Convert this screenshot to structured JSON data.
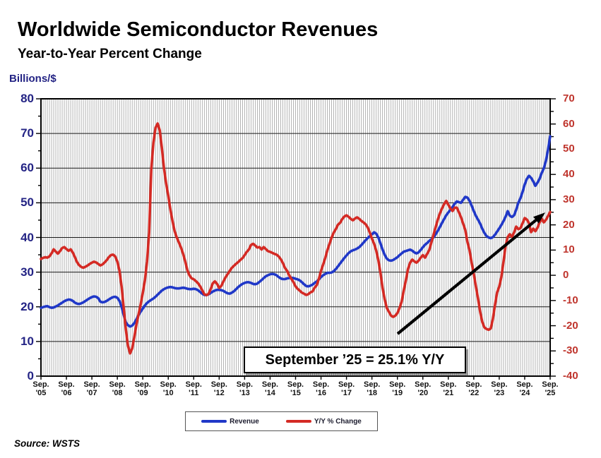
{
  "header": {
    "title": "Worldwide Semiconductor Revenues",
    "subtitle": "Year-to-Year Percent Change"
  },
  "left_axis": {
    "label": "Billions/$",
    "ticks": [
      80,
      70,
      60,
      50,
      40,
      30,
      20,
      10,
      0
    ],
    "color": "#232384"
  },
  "right_axis": {
    "ticks": [
      70,
      60,
      50,
      40,
      30,
      20,
      10,
      0,
      -10,
      -20,
      -30,
      -40
    ],
    "color": "#bf342c"
  },
  "x_axis": {
    "month_label": "Sep.",
    "years": [
      "'05",
      "'06",
      "'07",
      "'08",
      "'09",
      "'10",
      "'11",
      "'12",
      "'13",
      "'14",
      "'15",
      "'16",
      "'17",
      "'18",
      "'19",
      "'20",
      "'21",
      "'22",
      "'23",
      "'24",
      "'25"
    ]
  },
  "annotation": {
    "text": "September ’25 = 25.1% Y/Y"
  },
  "legend": {
    "items": [
      {
        "label": "Revenue",
        "color": "#2038c8"
      },
      {
        "label": "Y/Y % Change",
        "color": "#d42a24"
      }
    ]
  },
  "source": {
    "text": "Source: WSTS"
  },
  "chart_data": {
    "type": "line",
    "x_start": "Sep 2005",
    "x_end": "Sep 2025",
    "x_step": "month",
    "x_tick_labels": [
      "Sep. '05",
      "Sep. '06",
      "Sep. '07",
      "Sep. '08",
      "Sep. '09",
      "Sep. '10",
      "Sep. '11",
      "Sep. '12",
      "Sep. '13",
      "Sep. '14",
      "Sep. '15",
      "Sep. '16",
      "Sep. '17",
      "Sep. '18",
      "Sep. '19",
      "Sep. '20",
      "Sep. '21",
      "Sep. '22",
      "Sep. '23",
      "Sep. '24",
      "Sep. '25"
    ],
    "left_ylim": [
      0,
      80
    ],
    "right_ylim": [
      -40,
      70
    ],
    "grid": {
      "vertical": "monthly",
      "horizontal_step_left_axis": 10
    },
    "legend_position": "bottom",
    "series": [
      {
        "name": "Revenue",
        "axis": "left",
        "units": "billions USD per month",
        "color": "#2038c8",
        "values": [
          19.7,
          19.9,
          20.1,
          20.2,
          19.9,
          19.7,
          19.8,
          20.1,
          20.4,
          20.8,
          21.2,
          21.6,
          21.9,
          22.1,
          22.0,
          21.7,
          21.2,
          20.9,
          20.8,
          21.0,
          21.3,
          21.7,
          22.1,
          22.5,
          22.8,
          23.0,
          22.9,
          22.5,
          21.5,
          21.3,
          21.4,
          21.7,
          22.1,
          22.5,
          22.8,
          22.9,
          22.6,
          21.7,
          20.0,
          17.6,
          15.5,
          14.7,
          14.3,
          14.6,
          15.3,
          16.4,
          17.6,
          18.6,
          19.5,
          20.4,
          21.1,
          21.6,
          22.0,
          22.4,
          22.9,
          23.5,
          24.1,
          24.7,
          25.1,
          25.4,
          25.6,
          25.7,
          25.6,
          25.4,
          25.3,
          25.3,
          25.4,
          25.5,
          25.4,
          25.2,
          25.1,
          25.1,
          25.2,
          25.1,
          24.8,
          24.3,
          23.8,
          23.4,
          23.4,
          23.6,
          24.0,
          24.4,
          24.7,
          24.9,
          24.9,
          24.8,
          24.6,
          24.2,
          23.9,
          23.8,
          24.1,
          24.5,
          25.1,
          25.7,
          26.2,
          26.6,
          26.9,
          27.1,
          27.1,
          26.9,
          26.6,
          26.5,
          26.7,
          27.2,
          27.7,
          28.3,
          28.8,
          29.1,
          29.4,
          29.5,
          29.4,
          29.1,
          28.6,
          28.2,
          28.0,
          28.0,
          28.2,
          28.3,
          28.4,
          28.3,
          28.1,
          27.9,
          27.6,
          27.1,
          26.5,
          26.0,
          25.9,
          26.1,
          26.4,
          26.9,
          27.3,
          27.9,
          28.6,
          29.1,
          29.5,
          29.8,
          29.8,
          29.9,
          30.3,
          30.9,
          31.7,
          32.5,
          33.3,
          34.1,
          34.8,
          35.5,
          36.0,
          36.3,
          36.5,
          36.8,
          37.2,
          37.8,
          38.5,
          39.2,
          39.8,
          40.4,
          40.9,
          41.5,
          41.1,
          40.0,
          38.3,
          36.5,
          35.0,
          33.9,
          33.4,
          33.3,
          33.5,
          33.9,
          34.3,
          34.9,
          35.4,
          35.9,
          36.1,
          36.3,
          36.5,
          36.2,
          35.7,
          35.4,
          35.7,
          36.4,
          37.2,
          37.9,
          38.4,
          39.0,
          39.5,
          40.0,
          40.9,
          41.9,
          43.0,
          44.2,
          45.3,
          46.4,
          47.2,
          48.0,
          48.8,
          49.7,
          50.4,
          50.2,
          50.0,
          50.9,
          51.7,
          51.5,
          50.6,
          49.2,
          47.6,
          46.2,
          45.1,
          44.0,
          42.5,
          41.3,
          40.4,
          40.0,
          39.8,
          40.1,
          40.8,
          41.7,
          42.6,
          43.6,
          44.7,
          46.0,
          47.6,
          46.3,
          45.9,
          46.4,
          48.0,
          50.0,
          51.3,
          53.1,
          55.3,
          56.9,
          57.8,
          57.2,
          56.2,
          54.9,
          55.8,
          56.9,
          58.6,
          59.9,
          62.1,
          65.3,
          69.2
        ]
      },
      {
        "name": "Y/Y % Change",
        "axis": "right",
        "units": "percent",
        "color": "#d42a24",
        "values": [
          6.5,
          6.9,
          7.2,
          7.0,
          7.5,
          8.7,
          10.3,
          9.4,
          8.6,
          9.6,
          10.8,
          11.2,
          10.4,
          9.7,
          10.3,
          9.0,
          7.2,
          5.2,
          4.0,
          3.3,
          3.0,
          3.4,
          3.9,
          4.5,
          5.0,
          5.4,
          5.1,
          4.5,
          3.9,
          4.3,
          5.1,
          6.0,
          7.2,
          8.0,
          8.2,
          7.5,
          5.4,
          1.8,
          -4.5,
          -13.0,
          -21.5,
          -28.0,
          -31.0,
          -29.0,
          -24.5,
          -19.5,
          -15.5,
          -11.5,
          -7.0,
          -2.0,
          5.5,
          17.0,
          42.0,
          52.5,
          58.5,
          60.2,
          57.5,
          50.5,
          42.5,
          36.5,
          31.5,
          26.0,
          21.5,
          17.5,
          15.0,
          13.0,
          11.0,
          8.5,
          5.5,
          2.0,
          0.0,
          -1.2,
          -1.6,
          -2.3,
          -3.1,
          -4.3,
          -5.9,
          -7.5,
          -7.9,
          -7.4,
          -5.5,
          -3.2,
          -2.4,
          -3.4,
          -5.0,
          -4.2,
          -2.4,
          -0.8,
          0.5,
          1.8,
          3.0,
          3.8,
          4.6,
          5.3,
          6.1,
          6.8,
          8.0,
          9.3,
          10.2,
          12.0,
          12.5,
          11.8,
          11.0,
          11.2,
          10.2,
          11.2,
          10.4,
          9.6,
          9.3,
          8.9,
          8.5,
          8.2,
          7.5,
          6.4,
          4.9,
          2.9,
          1.8,
          0.0,
          -1.4,
          -2.7,
          -4.4,
          -5.4,
          -6.1,
          -6.9,
          -7.3,
          -7.8,
          -7.5,
          -6.8,
          -6.4,
          -4.9,
          -3.9,
          -1.4,
          1.8,
          4.3,
          6.9,
          10.0,
          12.5,
          15.0,
          17.0,
          18.4,
          20.1,
          20.8,
          22.3,
          23.3,
          23.8,
          23.2,
          22.4,
          21.8,
          22.5,
          23.0,
          22.4,
          21.6,
          21.0,
          20.3,
          19.0,
          17.0,
          14.5,
          12.5,
          9.8,
          6.0,
          1.0,
          -5.0,
          -9.5,
          -13.0,
          -14.5,
          -16.0,
          -16.5,
          -16.0,
          -15.0,
          -13.0,
          -10.5,
          -6.0,
          -2.0,
          2.5,
          5.0,
          6.2,
          5.5,
          5.0,
          5.8,
          7.0,
          8.0,
          7.0,
          8.5,
          10.0,
          13.0,
          16.0,
          19.0,
          22.0,
          24.5,
          26.5,
          28.2,
          29.5,
          28.0,
          26.5,
          25.5,
          26.8,
          26.8,
          25.0,
          23.0,
          20.5,
          18.0,
          13.3,
          10.0,
          5.0,
          0.5,
          -4.5,
          -9.3,
          -14.5,
          -18.5,
          -20.7,
          -21.3,
          -21.6,
          -21.1,
          -17.3,
          -11.8,
          -6.8,
          -4.5,
          -0.7,
          5.3,
          11.6,
          15.2,
          16.3,
          15.2,
          17.0,
          19.3,
          18.3,
          18.7,
          20.6,
          22.7,
          22.1,
          20.7,
          17.1,
          18.5,
          17.5,
          18.8,
          21.0,
          22.5,
          21.0,
          22.0,
          23.5,
          25.1
        ]
      }
    ],
    "annotations": [
      {
        "text": "September ’25 = 25.1% Y/Y",
        "type": "callout-box"
      },
      {
        "type": "arrow",
        "from": [
          168.1,
          -23.2
        ],
        "to": [
          237.7,
          24.9
        ],
        "coords": "[month_index, right_axis_value]"
      }
    ]
  }
}
